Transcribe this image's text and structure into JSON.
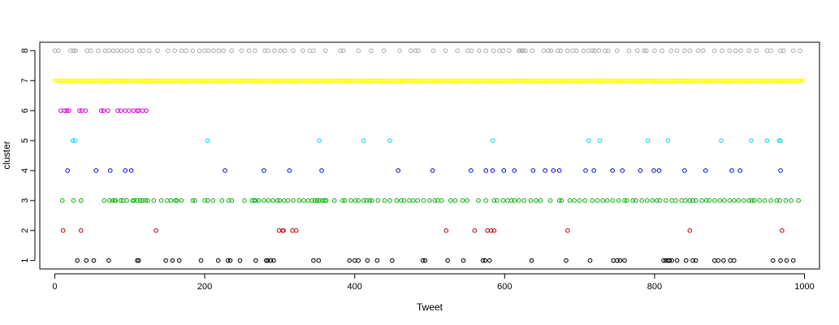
{
  "chart_data": {
    "type": "scatter",
    "title": "",
    "xlabel": "Tweet",
    "ylabel": "cluster",
    "xlim": [
      -20,
      1020
    ],
    "ylim": [
      0.72,
      8.28
    ],
    "xticks": [
      0,
      200,
      400,
      600,
      800,
      1000
    ],
    "yticks": [
      1,
      2,
      3,
      4,
      5,
      6,
      7,
      8
    ],
    "xtick_labels": [
      "0",
      "200",
      "400",
      "600",
      "800",
      "1000"
    ],
    "ytick_labels": [
      "1",
      "2",
      "3",
      "4",
      "5",
      "6",
      "7",
      "8"
    ],
    "grid": false,
    "marker": "open-circle",
    "series": [
      {
        "cluster": 1,
        "color": "#000000",
        "x": [
          30,
          42,
          52,
          72,
          110,
          112,
          148,
          157,
          166,
          195,
          218,
          231,
          234,
          247,
          268,
          282,
          284,
          288,
          292,
          345,
          352,
          393,
          400,
          405,
          417,
          430,
          450,
          491,
          494,
          524,
          545,
          571,
          574,
          580,
          636,
          682,
          714,
          745,
          750,
          754,
          760,
          812,
          815,
          818,
          820,
          823,
          830,
          842,
          851,
          855,
          880,
          885,
          892,
          901,
          906,
          958,
          968,
          976,
          985
        ]
      },
      {
        "cluster": 2,
        "color": "#cc0000",
        "x": [
          11,
          35,
          135,
          299,
          304,
          305,
          317,
          322,
          522,
          560,
          577,
          582,
          586,
          684,
          847,
          970
        ]
      },
      {
        "cluster": 3,
        "color": "#00b400",
        "x": [
          10,
          25,
          35,
          66,
          73,
          77,
          80,
          81,
          88,
          91,
          96,
          104,
          106,
          110,
          114,
          117,
          121,
          124,
          132,
          142,
          150,
          155,
          161,
          163,
          169,
          184,
          187,
          200,
          204,
          211,
          223,
          232,
          236,
          253,
          263,
          266,
          268,
          272,
          279,
          285,
          291,
          297,
          300,
          306,
          311,
          318,
          326,
          332,
          338,
          343,
          347,
          350,
          353,
          357,
          360,
          362,
          373,
          384,
          387,
          395,
          401,
          405,
          412,
          416,
          420,
          423,
          431,
          440,
          447,
          456,
          462,
          466,
          473,
          478,
          484,
          492,
          500,
          507,
          511,
          516,
          528,
          534,
          544,
          550,
          565,
          575,
          586,
          590,
          598,
          604,
          609,
          613,
          619,
          626,
          635,
          642,
          648,
          661,
          673,
          676,
          687,
          693,
          700,
          707,
          717,
          724,
          731,
          737,
          744,
          752,
          760,
          763,
          771,
          775,
          783,
          790,
          797,
          803,
          807,
          815,
          823,
          828,
          836,
          841,
          847,
          851,
          855,
          863,
          869,
          873,
          880,
          887,
          893,
          900,
          906,
          912,
          919,
          926,
          930,
          933,
          940,
          947,
          955,
          963,
          967,
          975,
          982,
          992
        ]
      },
      {
        "cluster": 4,
        "color": "#0000cc",
        "x": [
          17,
          55,
          74,
          94,
          102,
          227,
          279,
          313,
          356,
          458,
          504,
          555,
          575,
          584,
          599,
          613,
          638,
          654,
          665,
          673,
          708,
          719,
          744,
          757,
          781,
          799,
          806,
          840,
          868,
          903,
          914,
          968
        ]
      },
      {
        "cluster": 5,
        "color": "#00dcdc",
        "x": [
          24,
          27,
          204,
          353,
          412,
          447,
          584,
          712,
          727,
          791,
          818,
          889,
          929,
          950,
          966,
          968
        ]
      },
      {
        "cluster": 6,
        "color": "#dc00dc",
        "x": [
          8,
          13,
          16,
          19,
          33,
          36,
          41,
          62,
          65,
          71,
          84,
          88,
          94,
          99,
          105,
          110,
          112,
          117,
          122
        ]
      },
      {
        "cluster": 7,
        "color": "#ffff00",
        "dense_ranges": [
          [
            0,
            123
          ],
          [
            125,
            1000
          ]
        ]
      },
      {
        "cluster": 8,
        "color": "#aaaaaa",
        "x": [
          0,
          5,
          21,
          25,
          28,
          43,
          48,
          58,
          67,
          72,
          78,
          83,
          89,
          96,
          103,
          113,
          118,
          126,
          137,
          151,
          160,
          169,
          175,
          184,
          193,
          200,
          205,
          212,
          219,
          225,
          236,
          249,
          259,
          267,
          280,
          285,
          293,
          301,
          307,
          318,
          331,
          340,
          345,
          361,
          381,
          385,
          405,
          422,
          439,
          460,
          475,
          481,
          485,
          505,
          521,
          537,
          551,
          556,
          566,
          575,
          585,
          593,
          598,
          606,
          619,
          621,
          623,
          625,
          628,
          637,
          652,
          658,
          662,
          671,
          675,
          684,
          691,
          696,
          705,
          712,
          717,
          720,
          726,
          734,
          738,
          750,
          766,
          777,
          786,
          789,
          800,
          810,
          822,
          830,
          840,
          847,
          858,
          865,
          880,
          890,
          900,
          908,
          915,
          926,
          936,
          950,
          955,
          968,
          972,
          985,
          994
        ]
      }
    ]
  }
}
